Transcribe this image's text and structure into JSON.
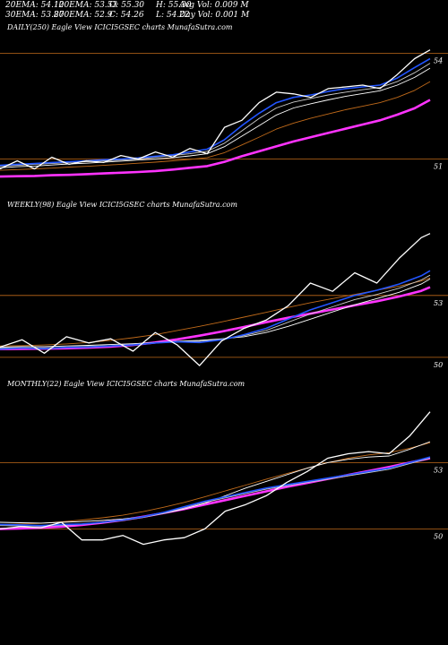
{
  "colors": {
    "background": "#000000",
    "price": "#ffffff",
    "ema20": "#2255ff",
    "ema30": "#cccccc",
    "ema50": "#ffffff",
    "ema100": "#c06a1a",
    "ema200": "#ff33ff",
    "ref_line": "#c06a1a"
  },
  "stats": {
    "ema20": "20EMA: 54.12",
    "ema100": "100EMA: 53.53",
    "open": "O: 55.30",
    "high": "H: 55.30",
    "avgvol": "Avg Vol: 0.009 M",
    "ema30": "30EMA: 53.87",
    "ema200": "200EMA: 52.9",
    "close": "C: 54.26",
    "low": "L: 54.22",
    "dayvol": "Day Vol: 0.001 M"
  },
  "chart_data": [
    {
      "type": "line",
      "title": "DAILY(250) Eagle   View  ICICI5GSEC charts MunafaSutra.com",
      "ylim": [
        50.3,
        54.5
      ],
      "y_ticks": [
        {
          "value": 54,
          "label": "54"
        },
        {
          "value": 51,
          "label": "51"
        }
      ],
      "x": [
        0,
        10,
        20,
        30,
        40,
        50,
        60,
        70,
        80,
        90,
        100,
        110,
        120,
        130,
        140,
        150,
        160,
        170,
        180,
        190,
        200,
        210,
        220,
        230,
        240,
        249
      ],
      "series": [
        {
          "key": "price",
          "values": [
            50.72,
            50.95,
            50.72,
            51.05,
            50.85,
            50.95,
            50.9,
            51.1,
            51.0,
            51.2,
            51.05,
            51.3,
            51.15,
            51.9,
            52.1,
            52.6,
            52.9,
            52.85,
            52.75,
            53.0,
            53.05,
            53.1,
            53.0,
            53.4,
            53.85,
            54.1
          ]
        },
        {
          "key": "ema20",
          "values": [
            50.82,
            50.85,
            50.87,
            50.9,
            50.92,
            50.95,
            50.98,
            51.0,
            51.03,
            51.08,
            51.12,
            51.2,
            51.28,
            51.55,
            51.95,
            52.3,
            52.6,
            52.75,
            52.82,
            52.92,
            53.0,
            53.05,
            53.1,
            53.3,
            53.6,
            53.85
          ]
        },
        {
          "key": "ema30",
          "values": [
            50.8,
            50.82,
            50.85,
            50.87,
            50.9,
            50.92,
            50.95,
            50.97,
            51.0,
            51.05,
            51.1,
            51.15,
            51.22,
            51.45,
            51.8,
            52.15,
            52.45,
            52.62,
            52.72,
            52.82,
            52.9,
            52.97,
            53.03,
            53.2,
            53.45,
            53.72
          ]
        },
        {
          "key": "ema50",
          "values": [
            50.75,
            50.78,
            50.8,
            50.83,
            50.86,
            50.88,
            50.91,
            50.94,
            50.97,
            51.0,
            51.04,
            51.09,
            51.15,
            51.35,
            51.65,
            51.95,
            52.25,
            52.45,
            52.57,
            52.68,
            52.78,
            52.86,
            52.94,
            53.1,
            53.32,
            53.58
          ]
        },
        {
          "key": "ema100",
          "values": [
            50.68,
            50.7,
            50.72,
            50.74,
            50.77,
            50.79,
            50.82,
            50.85,
            50.88,
            50.91,
            50.95,
            50.99,
            51.04,
            51.18,
            51.4,
            51.62,
            51.85,
            52.02,
            52.16,
            52.28,
            52.4,
            52.5,
            52.6,
            52.75,
            52.95,
            53.2
          ]
        },
        {
          "key": "ema200",
          "values": [
            50.5,
            50.51,
            50.52,
            50.54,
            50.55,
            50.57,
            50.59,
            50.61,
            50.63,
            50.66,
            50.7,
            50.75,
            50.8,
            50.92,
            51.08,
            51.22,
            51.36,
            51.5,
            51.62,
            51.74,
            51.86,
            51.98,
            52.1,
            52.26,
            52.44,
            52.68
          ]
        }
      ]
    },
    {
      "type": "line",
      "title": "WEEKLY(98) Eagle   View  ICICI5GSEC charts MunafaSutra.com",
      "ylim": [
        49.3,
        56.9
      ],
      "y_ticks": [
        {
          "value": 53,
          "label": "53"
        },
        {
          "value": 50,
          "label": "50"
        }
      ],
      "x": [
        0,
        5,
        10,
        15,
        20,
        25,
        30,
        35,
        40,
        45,
        50,
        55,
        60,
        65,
        70,
        75,
        80,
        85,
        90,
        95,
        97
      ],
      "series": [
        {
          "key": "price",
          "values": [
            50.5,
            50.85,
            50.2,
            51.0,
            50.7,
            50.9,
            50.3,
            51.2,
            50.6,
            49.6,
            50.8,
            51.4,
            51.8,
            52.5,
            53.6,
            53.2,
            54.1,
            53.6,
            54.8,
            55.8,
            56.0
          ]
        },
        {
          "key": "ema20",
          "values": [
            50.4,
            50.45,
            50.42,
            50.48,
            50.5,
            50.55,
            50.6,
            50.7,
            50.75,
            50.72,
            50.85,
            51.1,
            51.4,
            51.85,
            52.3,
            52.65,
            53.0,
            53.25,
            53.55,
            53.95,
            54.2
          ]
        },
        {
          "key": "ema30",
          "values": [
            50.45,
            50.47,
            50.46,
            50.5,
            50.53,
            50.57,
            50.62,
            50.7,
            50.76,
            50.78,
            50.88,
            51.05,
            51.3,
            51.7,
            52.1,
            52.45,
            52.8,
            53.05,
            53.35,
            53.75,
            53.98
          ]
        },
        {
          "key": "ema50",
          "values": [
            50.5,
            50.52,
            50.52,
            50.55,
            50.58,
            50.62,
            50.66,
            50.72,
            50.78,
            50.82,
            50.9,
            51.0,
            51.2,
            51.5,
            51.85,
            52.2,
            52.55,
            52.85,
            53.15,
            53.55,
            53.8
          ]
        },
        {
          "key": "ema100",
          "values": [
            50.55,
            50.57,
            50.6,
            50.65,
            50.72,
            50.82,
            50.95,
            51.1,
            51.3,
            51.5,
            51.72,
            51.95,
            52.18,
            52.42,
            52.65,
            52.85,
            53.05,
            53.25,
            53.45,
            53.7,
            53.85
          ]
        },
        {
          "key": "ema200",
          "values": [
            50.4,
            50.41,
            50.42,
            50.44,
            50.47,
            50.52,
            50.6,
            50.72,
            50.87,
            51.05,
            51.25,
            51.47,
            51.7,
            51.92,
            52.12,
            52.32,
            52.52,
            52.72,
            52.95,
            53.22,
            53.4
          ]
        }
      ]
    },
    {
      "type": "line",
      "title": "MONTHLY(22) Eagle   View  ICICI5GSEC charts MunafaSutra.com",
      "ylim": [
        49.0,
        56.1
      ],
      "y_ticks": [
        {
          "value": 53,
          "label": "53"
        },
        {
          "value": 50,
          "label": "50"
        }
      ],
      "x": [
        0,
        1,
        2,
        3,
        4,
        5,
        6,
        7,
        8,
        9,
        10,
        11,
        12,
        13,
        14,
        15,
        16,
        17,
        18,
        19,
        20,
        21
      ],
      "series": [
        {
          "key": "price",
          "values": [
            50.0,
            50.1,
            50.05,
            50.3,
            49.5,
            49.5,
            49.7,
            49.3,
            49.5,
            49.6,
            50.0,
            50.8,
            51.1,
            51.5,
            52.1,
            52.6,
            53.2,
            53.4,
            53.5,
            53.4,
            54.2,
            55.3
          ]
        },
        {
          "key": "ema20",
          "values": [
            50.2,
            50.18,
            50.15,
            50.2,
            50.22,
            50.3,
            50.4,
            50.55,
            50.75,
            51.0,
            51.25,
            51.45,
            51.65,
            51.85,
            52.0,
            52.15,
            52.3,
            52.45,
            52.6,
            52.75,
            53.0,
            53.25
          ]
        },
        {
          "key": "ema30",
          "values": [
            50.15,
            50.13,
            50.12,
            50.16,
            50.2,
            50.28,
            50.38,
            50.52,
            50.7,
            50.95,
            51.2,
            51.4,
            51.6,
            51.8,
            51.95,
            52.1,
            52.25,
            52.4,
            52.55,
            52.7,
            52.95,
            53.2
          ]
        },
        {
          "key": "ema50",
          "values": [
            50.3,
            50.28,
            50.26,
            50.3,
            50.33,
            50.38,
            50.45,
            50.55,
            50.7,
            50.9,
            51.15,
            51.5,
            51.85,
            52.15,
            52.45,
            52.75,
            53.0,
            53.15,
            53.25,
            53.3,
            53.6,
            53.95
          ]
        },
        {
          "key": "ema100",
          "values": [
            50.2,
            50.22,
            50.25,
            50.32,
            50.4,
            50.5,
            50.62,
            50.78,
            50.98,
            51.2,
            51.45,
            51.72,
            51.98,
            52.25,
            52.5,
            52.75,
            53.0,
            53.2,
            53.35,
            53.45,
            53.65,
            53.9
          ]
        },
        {
          "key": "ema200",
          "values": [
            50.0,
            50.02,
            50.05,
            50.1,
            50.18,
            50.28,
            50.4,
            50.55,
            50.72,
            50.9,
            51.1,
            51.3,
            51.5,
            51.7,
            51.9,
            52.08,
            52.26,
            52.44,
            52.62,
            52.8,
            53.0,
            53.2
          ]
        }
      ]
    }
  ]
}
